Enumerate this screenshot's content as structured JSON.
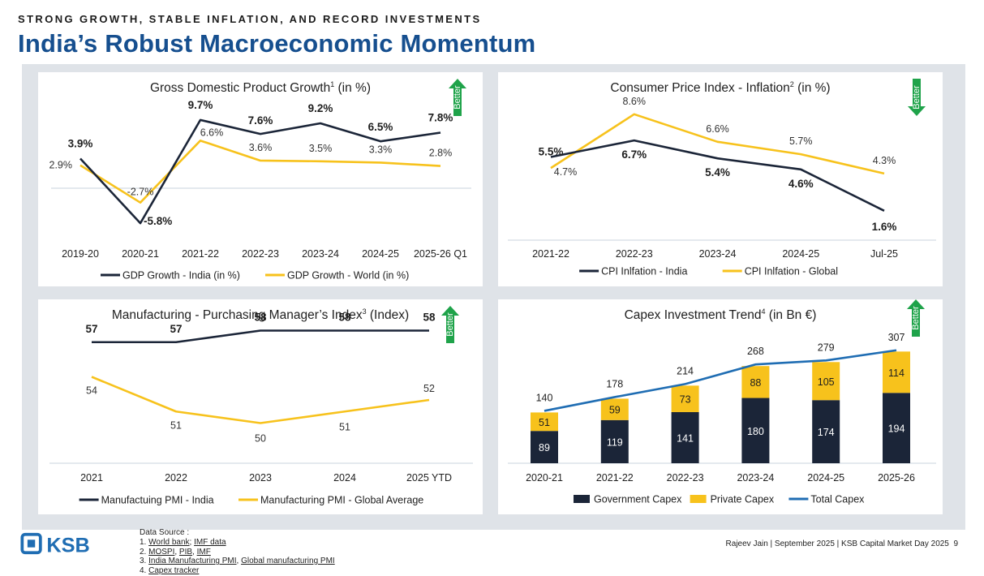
{
  "header": {
    "kicker": "STRONG GROWTH, STABLE INFLATION, AND RECORD INVESTMENTS",
    "title": "India’s Robust Macroeconomic Momentum"
  },
  "colors": {
    "dark": "#1b2538",
    "yellow": "#f7c21c",
    "blue": "#1f6db3",
    "green": "#1fa34a",
    "title": "#164f8f"
  },
  "better_label": "Better",
  "chart_data": [
    {
      "type": "line",
      "title": "Gross Domestic Product Growth",
      "title_sup": "1",
      "title_suffix": "(in %)",
      "better_direction": "up",
      "categories": [
        "2019-20",
        "2020-21",
        "2021-22",
        "2022-23",
        "2023-24",
        "2024-25",
        "2025-26 Q1"
      ],
      "series": [
        {
          "name": "GDP Growth - India (in %)",
          "values": [
            3.9,
            -5.8,
            9.7,
            7.6,
            9.2,
            6.5,
            7.8
          ],
          "labels": [
            "3.9%",
            "-5.8%",
            "9.7%",
            "7.6%",
            "9.2%",
            "6.5%",
            "7.8%"
          ]
        },
        {
          "name": "GDP Growth - World (in %)",
          "values": [
            2.9,
            -2.7,
            6.6,
            3.6,
            3.5,
            3.3,
            2.8
          ],
          "labels": [
            "2.9%",
            "-2.7%",
            "6.6%",
            "3.6%",
            "3.5%",
            "3.3%",
            "2.8%"
          ]
        }
      ],
      "ylim": [
        -7,
        12
      ]
    },
    {
      "type": "line",
      "title": "Consumer Price Index - Inflation",
      "title_sup": "2",
      "title_suffix": "(in %)",
      "better_direction": "down",
      "categories": [
        "2021-22",
        "2022-23",
        "2023-24",
        "2024-25",
        "Jul-25"
      ],
      "series": [
        {
          "name": "CPI Inlfation - India",
          "values": [
            5.5,
            6.7,
            5.4,
            4.6,
            1.6
          ],
          "labels": [
            "5.5%",
            "6.7%",
            "5.4%",
            "4.6%",
            "1.6%"
          ]
        },
        {
          "name": "CPI Inlfation - Global",
          "values": [
            4.7,
            8.6,
            6.6,
            5.7,
            4.3
          ],
          "labels": [
            "4.7%",
            "8.6%",
            "6.6%",
            "5.7%",
            "4.3%"
          ]
        }
      ],
      "ylim": [
        0,
        10
      ]
    },
    {
      "type": "line",
      "title": "Manufacturing - Purchasing Manager’s Index",
      "title_sup": "3",
      "title_suffix": "(Index)",
      "better_direction": "up",
      "categories": [
        "2021",
        "2022",
        "2023",
        "2024",
        "2025 YTD"
      ],
      "series": [
        {
          "name": "Manufactuing PMI - India",
          "values": [
            57,
            57,
            58,
            58,
            58
          ],
          "labels": [
            "57",
            "57",
            "58",
            "58",
            "58"
          ]
        },
        {
          "name": "Manufacturing PMI - Global Average",
          "values": [
            54,
            51,
            50,
            51,
            52
          ],
          "labels": [
            "54",
            "51",
            "50",
            "51",
            "52"
          ]
        }
      ],
      "ylim": [
        48,
        60
      ]
    },
    {
      "type": "bar",
      "stacked": true,
      "title": "Capex Investment Trend",
      "title_sup": "4",
      "title_suffix": "(in Bn €)",
      "better_direction": "up",
      "categories": [
        "2020-21",
        "2021-22",
        "2022-23",
        "2023-24",
        "2024-25",
        "2025-26"
      ],
      "series": [
        {
          "name": "Government Capex",
          "values": [
            89,
            119,
            141,
            180,
            174,
            194
          ]
        },
        {
          "name": "Private Capex",
          "values": [
            51,
            59,
            73,
            88,
            105,
            114
          ]
        },
        {
          "name": "Total Capex",
          "type": "line",
          "values": [
            140,
            178,
            214,
            268,
            279,
            307
          ]
        }
      ],
      "ylim": [
        0,
        330
      ]
    }
  ],
  "footer": {
    "source_title": "Data Source :",
    "sources": [
      {
        "num": "1.",
        "links": [
          "World bank",
          "IMF data"
        ],
        "sep": "; "
      },
      {
        "num": "2.",
        "links": [
          "MOSPI",
          "PIB",
          "IMF"
        ],
        "sep": ", "
      },
      {
        "num": "3.",
        "links": [
          "India Manufacturing PMI",
          "Global manufacturing PMI"
        ],
        "sep": ", "
      },
      {
        "num": "4.",
        "links": [
          "Capex tracker"
        ],
        "sep": ""
      }
    ],
    "presenter": "Rajeev Jain | September 2025 | KSB Capital Market Day 2025",
    "page_number": "9",
    "logo_text": "KSB"
  }
}
